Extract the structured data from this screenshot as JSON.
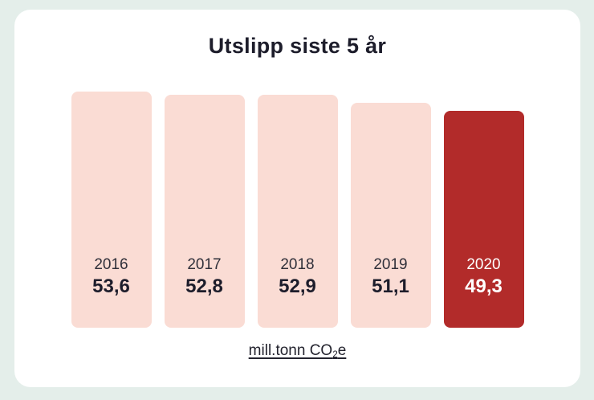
{
  "page": {
    "background_color": "#e4eeea",
    "card_background_color": "#ffffff"
  },
  "chart_data": {
    "type": "bar",
    "orientation": "vertical",
    "title": "Utslipp siste 5 år",
    "categories": [
      "2016",
      "2017",
      "2018",
      "2019",
      "2020"
    ],
    "values": [
      53.6,
      52.8,
      52.9,
      51.1,
      49.3
    ],
    "value_labels": [
      "53,6",
      "52,8",
      "52,9",
      "51,1",
      "49,3"
    ],
    "unit": {
      "prefix": "mill.tonn CO",
      "sub": "2",
      "suffix": "e"
    },
    "ylim": [
      0,
      53.6
    ],
    "grid": false,
    "legend": false,
    "bar_color": "#fadcd4",
    "highlight_bar_color": "#b22b2a",
    "highlight_index": 4,
    "label_color": "#1d1d2b",
    "year_label_color": "#30303a",
    "highlight_label_color": "#ffffff",
    "title_color": "#1d1d2b"
  }
}
